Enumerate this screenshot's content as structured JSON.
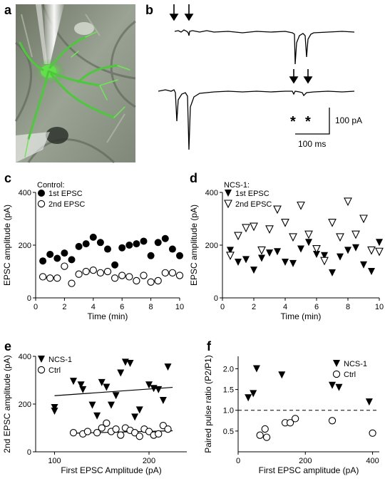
{
  "panels": {
    "a": {
      "letter": "a"
    },
    "b": {
      "letter": "b",
      "scale_current": "100 pA",
      "scale_time": "100 ms",
      "asterisk": "*"
    },
    "c": {
      "letter": "c"
    },
    "d": {
      "letter": "d"
    },
    "e": {
      "letter": "e"
    },
    "f": {
      "letter": "f"
    }
  },
  "colors": {
    "ink": "#000000",
    "fluor": "#44c23a",
    "tissue": "#8f9b86"
  },
  "chart_data": [
    {
      "id": "c",
      "type": "scatter",
      "title": "Control:",
      "xlabel": "Time (min)",
      "ylabel": "EPSC amplitude (pA)",
      "xlim": [
        0,
        10
      ],
      "ylim": [
        0,
        400
      ],
      "xticks": [
        "0",
        "2",
        "4",
        "6",
        "8",
        "10"
      ],
      "yticks": [
        "0",
        "200",
        "400"
      ],
      "legend_position": "top-left",
      "series": [
        {
          "name": "1st EPSC",
          "sup": "st",
          "marker": "filled-circle",
          "x": [
            0.5,
            1.0,
            1.5,
            2.0,
            2.5,
            3.0,
            3.5,
            4.0,
            4.5,
            5.0,
            5.5,
            6.0,
            6.5,
            7.0,
            7.5,
            8.0,
            8.5,
            9.0,
            9.5,
            10.0
          ],
          "y": [
            140,
            165,
            150,
            170,
            145,
            195,
            205,
            230,
            210,
            185,
            125,
            190,
            200,
            205,
            215,
            160,
            210,
            225,
            185,
            160
          ]
        },
        {
          "name": "2nd EPSC",
          "sup": "nd",
          "marker": "open-circle",
          "x": [
            0.5,
            1.0,
            1.5,
            2.0,
            2.5,
            3.0,
            3.5,
            4.0,
            4.5,
            5.0,
            5.5,
            6.0,
            6.5,
            7.0,
            7.5,
            8.0,
            8.5,
            9.0,
            9.5,
            10.0
          ],
          "y": [
            80,
            75,
            75,
            120,
            55,
            90,
            100,
            105,
            95,
            100,
            75,
            85,
            80,
            65,
            85,
            60,
            65,
            95,
            95,
            85
          ]
        }
      ]
    },
    {
      "id": "d",
      "type": "scatter",
      "title": "NCS-1:",
      "xlabel": "Time (min)",
      "ylabel": "EPSC amplitude (pA)",
      "xlim": [
        0,
        10
      ],
      "ylim": [
        0,
        400
      ],
      "xticks": [
        "0",
        "2",
        "4",
        "6",
        "8",
        "10"
      ],
      "yticks": [
        "0",
        "200",
        "400"
      ],
      "legend_position": "top-left",
      "series": [
        {
          "name": "1st EPSC",
          "sup": "st",
          "marker": "filled-triangle-down",
          "x": [
            0.5,
            1.0,
            1.5,
            2.0,
            2.5,
            3.0,
            3.5,
            4.0,
            4.5,
            5.0,
            5.5,
            6.0,
            6.5,
            7.0,
            7.5,
            8.0,
            8.5,
            9.0,
            9.5,
            10.0
          ],
          "y": [
            180,
            135,
            145,
            105,
            150,
            170,
            175,
            135,
            130,
            185,
            210,
            165,
            160,
            95,
            155,
            180,
            190,
            125,
            100,
            210
          ]
        },
        {
          "name": "2nd EPSC",
          "sup": "nd",
          "marker": "open-triangle-down",
          "x": [
            0.5,
            1.0,
            1.5,
            2.0,
            2.5,
            3.0,
            3.5,
            4.0,
            4.5,
            5.0,
            5.5,
            6.0,
            6.5,
            7.0,
            7.5,
            8.0,
            8.5,
            9.0,
            9.5,
            10.0
          ],
          "y": [
            160,
            235,
            265,
            270,
            180,
            260,
            335,
            285,
            230,
            350,
            240,
            185,
            140,
            285,
            230,
            365,
            240,
            300,
            180,
            175
          ]
        }
      ]
    },
    {
      "id": "e",
      "type": "scatter",
      "xlabel": "First EPSC Amplitude (pA)",
      "ylabel": "2nd EPSC amplitude (pA)",
      "ylabel_sup": "nd",
      "xlim": [
        80,
        240
      ],
      "ylim": [
        0,
        400
      ],
      "xticks": [
        "100",
        "200"
      ],
      "yticks": [
        "0",
        "200",
        "400"
      ],
      "legend_position": "top-left",
      "series": [
        {
          "name": "NCS-1",
          "marker": "filled-triangle-down",
          "x": [
            100,
            100,
            120,
            128,
            130,
            140,
            145,
            150,
            155,
            160,
            165,
            170,
            175,
            180,
            185,
            190,
            200,
            205,
            210,
            215,
            220
          ],
          "y": [
            185,
            170,
            295,
            280,
            260,
            195,
            150,
            290,
            270,
            195,
            235,
            330,
            375,
            370,
            145,
            175,
            280,
            265,
            260,
            215,
            355
          ]
        },
        {
          "name": "Ctrl",
          "marker": "open-circle",
          "x": [
            120,
            130,
            135,
            145,
            150,
            155,
            160,
            165,
            170,
            175,
            180,
            185,
            190,
            195,
            200,
            205,
            210,
            215,
            220
          ],
          "y": [
            80,
            75,
            85,
            80,
            100,
            120,
            85,
            95,
            70,
            100,
            90,
            80,
            65,
            95,
            85,
            70,
            75,
            110,
            95
          ]
        }
      ],
      "lines": [
        {
          "series": "NCS-1",
          "x": [
            100,
            225
          ],
          "y": [
            235,
            270
          ]
        },
        {
          "series": "Ctrl",
          "x": [
            120,
            225
          ],
          "y": [
            78,
            88
          ]
        }
      ]
    },
    {
      "id": "f",
      "type": "scatter",
      "xlabel": "First EPSC amplitude (pA)",
      "ylabel": "Paired pulse ratio (P2/P1)",
      "xlim": [
        0,
        420
      ],
      "ylim": [
        0,
        2.3
      ],
      "xticks": [
        "0",
        "200",
        "400"
      ],
      "yticks": [
        "0.5",
        "1.0",
        "1.5",
        "2.0"
      ],
      "reference_line": 1.0,
      "legend_position": "top-right",
      "series": [
        {
          "name": "NCS-1",
          "marker": "filled-triangle-down",
          "x": [
            30,
            45,
            55,
            130,
            280,
            300,
            390
          ],
          "y": [
            1.3,
            1.4,
            2.0,
            1.85,
            1.6,
            1.55,
            1.2
          ]
        },
        {
          "name": "Ctrl",
          "marker": "open-circle",
          "x": [
            65,
            80,
            85,
            140,
            155,
            170,
            280,
            400
          ],
          "y": [
            0.4,
            0.55,
            0.35,
            0.7,
            0.7,
            0.8,
            0.75,
            0.45
          ]
        }
      ]
    }
  ]
}
